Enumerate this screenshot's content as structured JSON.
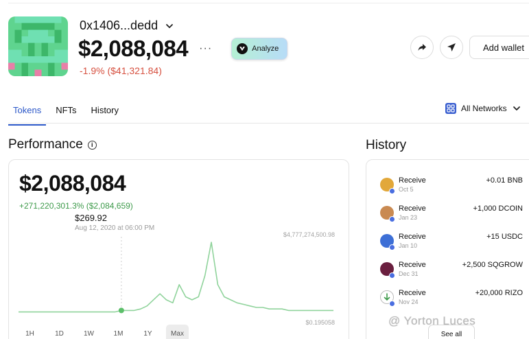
{
  "wallet": {
    "address": "0x1406...dedd",
    "balance": "$2,088,084",
    "more_label": "···",
    "change": "-1.9% ($41,321.84)",
    "analyze_label": "Analyze",
    "add_wallet_label": "Add wallet"
  },
  "tabs": [
    {
      "label": "Tokens",
      "active": true
    },
    {
      "label": "NFTs",
      "active": false
    },
    {
      "label": "History",
      "active": false
    }
  ],
  "network_filter": {
    "label": "All Networks",
    "icon": "network-grid-icon"
  },
  "performance": {
    "title": "Performance",
    "balance": "$2,088,084",
    "change": "+271,220,301.3% ($2,084,659)",
    "tooltip_value": "$269.92",
    "tooltip_date": "Aug 12, 2020 at 06:00 PM",
    "max_label": "$4,777,274,500.98",
    "min_label": "$0.195058",
    "ranges": [
      "1H",
      "1D",
      "1W",
      "1M",
      "1Y",
      "Max"
    ],
    "active_range": "Max"
  },
  "history": {
    "title": "History",
    "items": [
      {
        "type": "Receive",
        "date": "Oct 5",
        "amount": "+0.01 BNB",
        "icon": "bnb-icon",
        "color": "#e2a83a"
      },
      {
        "type": "Receive",
        "date": "Jan 23",
        "amount": "+1,000 DCOIN",
        "icon": "dcoin-icon",
        "color": "#c98a52"
      },
      {
        "type": "Receive",
        "date": "Jan 10",
        "amount": "+15 USDC",
        "icon": "usdc-icon",
        "color": "#3d6fd6"
      },
      {
        "type": "Receive",
        "date": "Dec 31",
        "amount": "+2,500 SQGROW",
        "icon": "sqgrow-icon",
        "color": "#6a1f3f"
      },
      {
        "type": "Receive",
        "date": "Nov 24",
        "amount": "+20,000 RIZO",
        "icon": "receive-arrow-icon",
        "color": "#3d9a4a"
      }
    ],
    "see_all_label": "See all"
  },
  "watermark": "@ Yorton Luces",
  "colors": {
    "accent": "#2b57c8",
    "negative": "#d6503f",
    "positive": "#3d9a4a",
    "chart_line": "#8fd39b"
  },
  "chart_data": {
    "type": "line",
    "x_range": [
      "2020",
      "present"
    ],
    "max_label": "$4,777,274,500.98",
    "min_label": "$0.195058",
    "highlight_point": {
      "date": "Aug 12, 2020 at 06:00 PM",
      "value": 269.92
    },
    "series": [
      {
        "values": [
          0.2,
          0.2,
          0.2,
          0.2,
          0.2,
          0.2,
          0.2,
          0.2,
          0.2,
          0.2,
          0.2,
          0.2,
          0.2,
          0.2,
          0.2,
          0.2,
          0.3,
          0.3,
          0.3,
          0.4,
          0.6,
          1.0,
          1.4,
          1.0,
          0.8,
          2.0,
          1.2,
          1.0,
          1.2,
          2.6,
          4.8,
          2.0,
          1.2,
          1.0,
          0.8,
          0.7,
          0.6,
          0.5,
          0.5,
          0.4,
          0.4,
          0.4,
          0.3,
          0.3,
          0.3,
          0.3,
          0.3,
          0.3,
          0.3,
          0.3
        ]
      }
    ]
  }
}
